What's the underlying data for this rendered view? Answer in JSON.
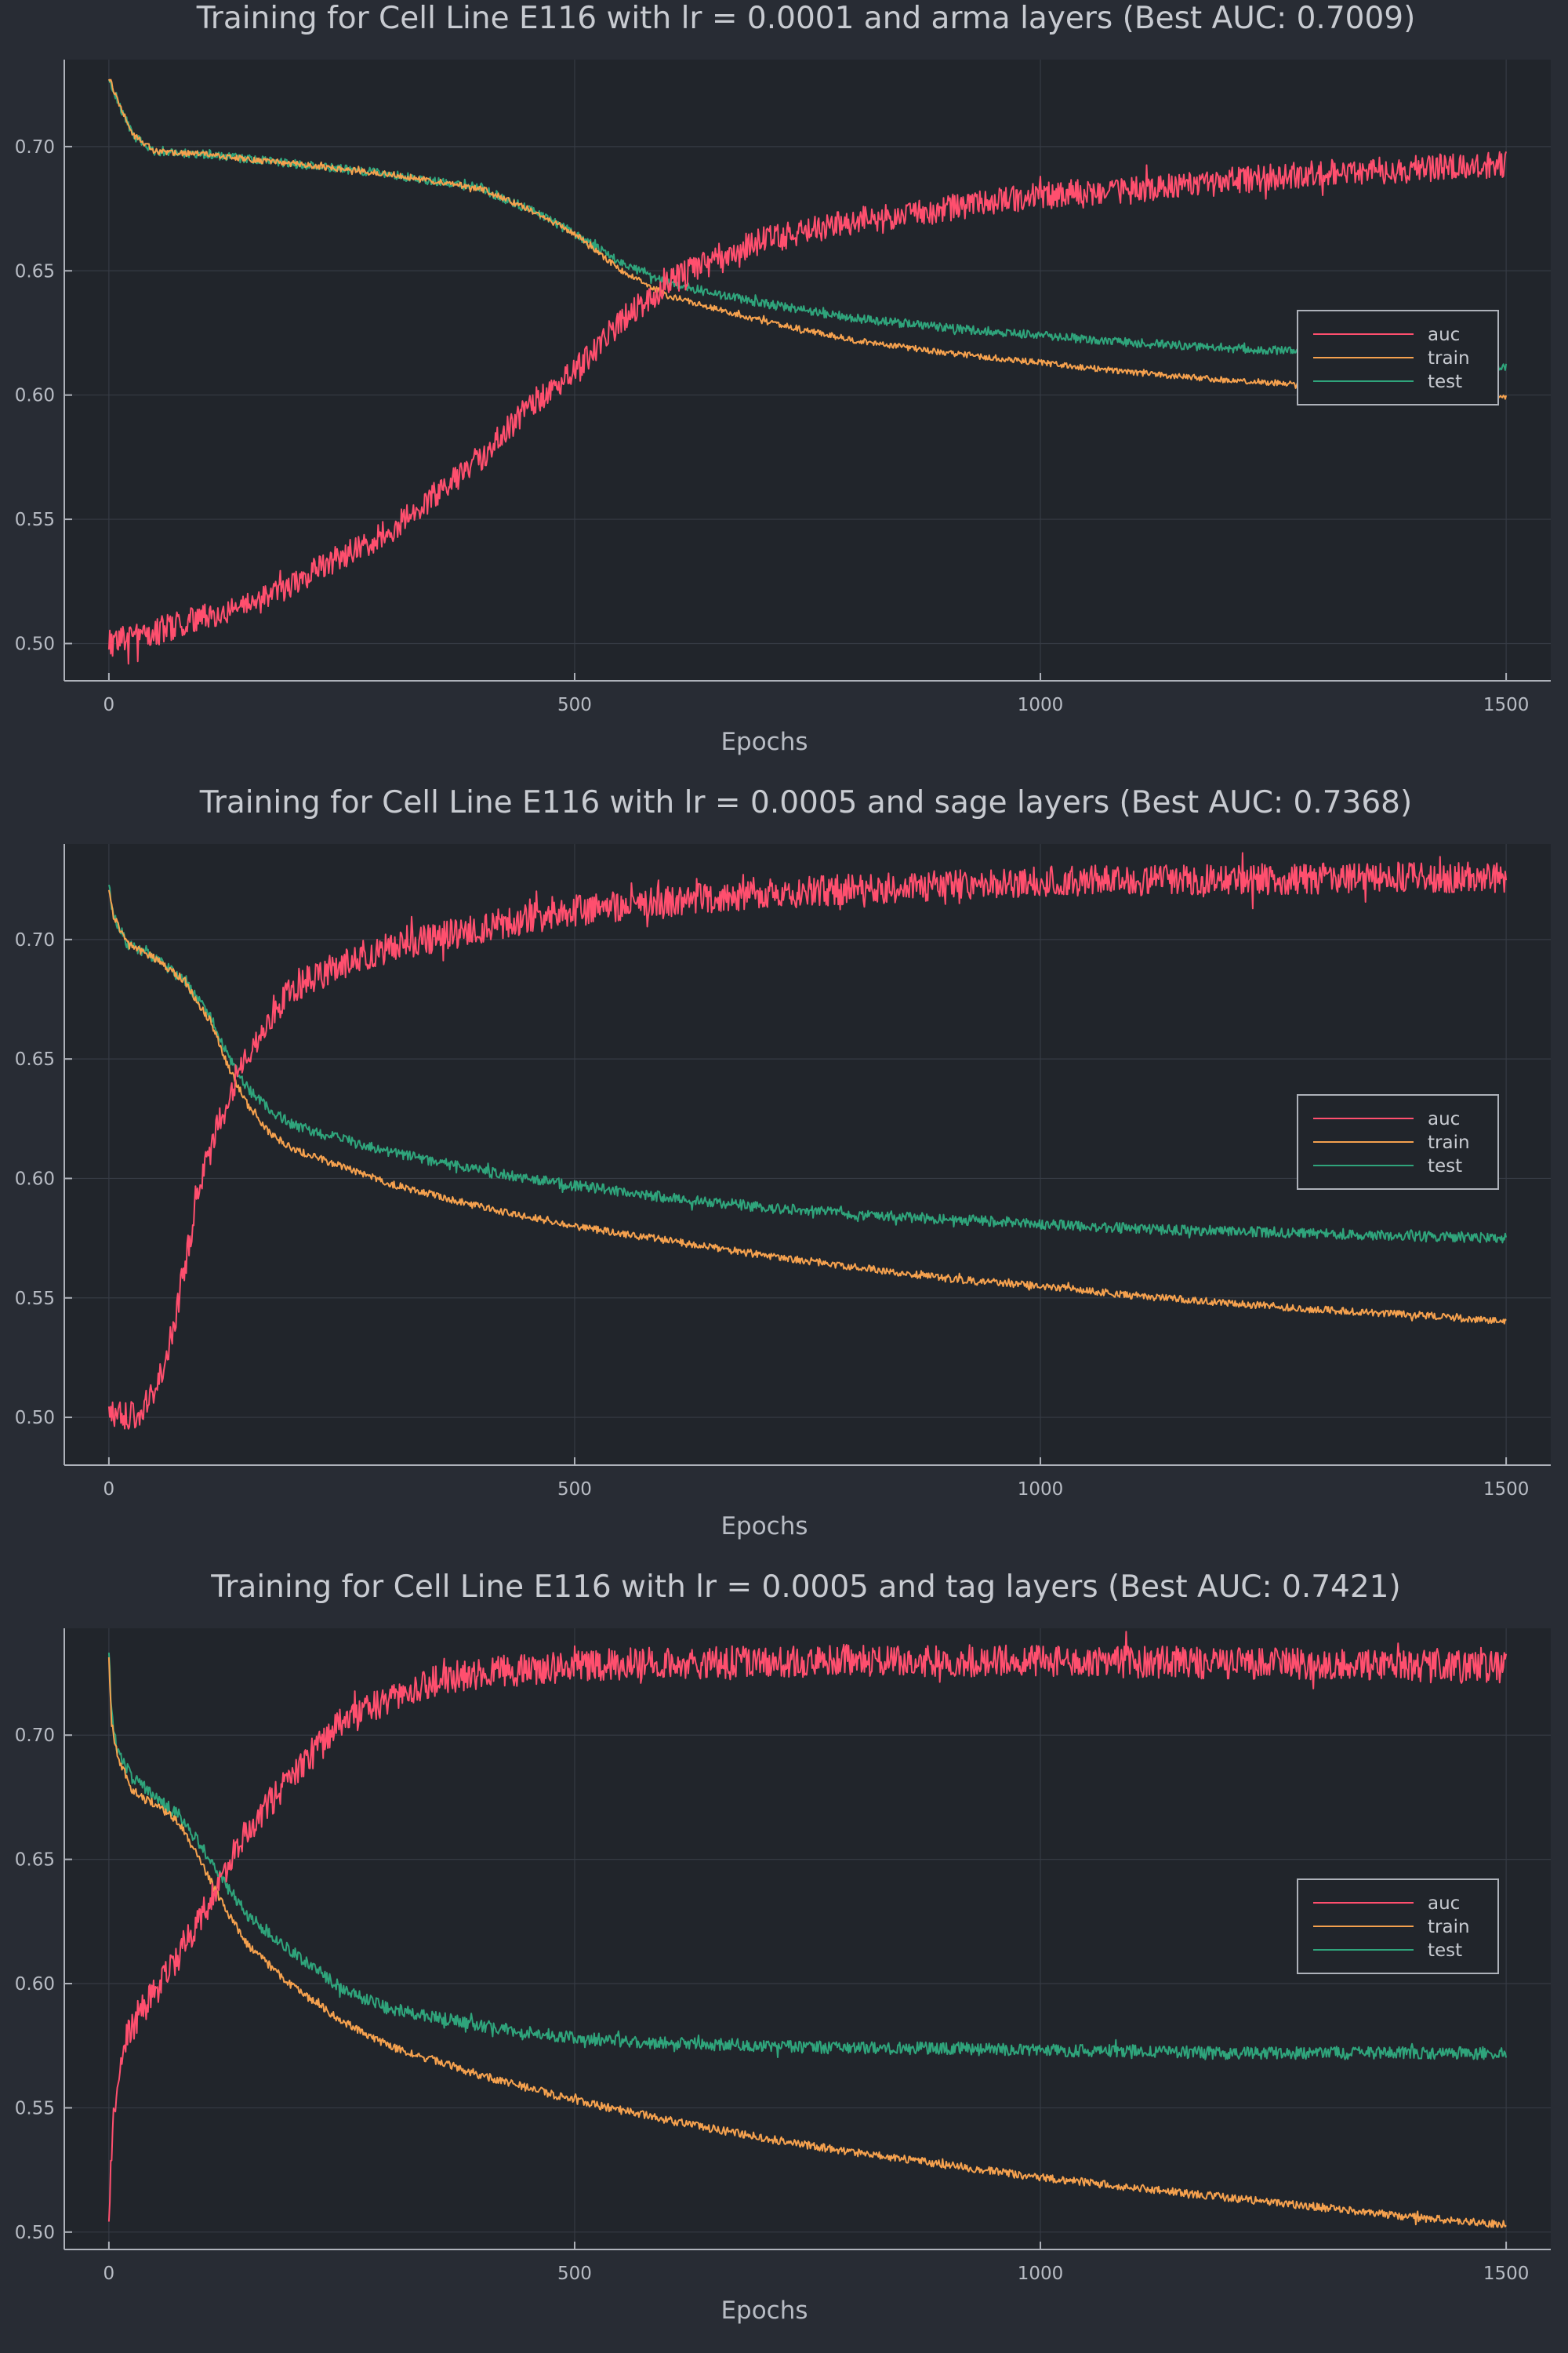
{
  "chart_data": [
    {
      "type": "line",
      "title": "Training for Cell Line E116 with lr = 0.0001 and arma layers (Best AUC: 0.7009)",
      "xlabel": "Epochs",
      "ylabel": "",
      "xlim": [
        0,
        1500
      ],
      "ylim": [
        0.485,
        0.735
      ],
      "xticks": [
        0,
        500,
        1000,
        1500
      ],
      "xtick_labels": [
        "0",
        "500",
        "1000",
        "1500"
      ],
      "yticks": [
        0.5,
        0.55,
        0.6,
        0.65,
        0.7
      ],
      "ytick_labels": [
        "0.50",
        "0.55",
        "0.60",
        "0.65",
        "0.70"
      ],
      "grid": true,
      "legend": "right",
      "series": [
        {
          "name": "auc",
          "color": "#ff4f6e",
          "x": [
            0,
            50,
            100,
            150,
            200,
            250,
            300,
            350,
            400,
            450,
            500,
            550,
            600,
            650,
            700,
            800,
            900,
            1000,
            1100,
            1200,
            1300,
            1400,
            1500
          ],
          "y": [
            0.5,
            0.505,
            0.51,
            0.515,
            0.525,
            0.535,
            0.545,
            0.56,
            0.575,
            0.595,
            0.61,
            0.63,
            0.645,
            0.655,
            0.662,
            0.67,
            0.675,
            0.68,
            0.683,
            0.686,
            0.689,
            0.691,
            0.693
          ]
        },
        {
          "name": "train",
          "color": "#f5a14e",
          "x": [
            0,
            10,
            25,
            50,
            100,
            200,
            300,
            400,
            450,
            500,
            550,
            600,
            700,
            800,
            900,
            1000,
            1100,
            1200,
            1300,
            1400,
            1500
          ],
          "y": [
            0.728,
            0.718,
            0.705,
            0.698,
            0.697,
            0.693,
            0.689,
            0.683,
            0.675,
            0.665,
            0.65,
            0.64,
            0.63,
            0.622,
            0.617,
            0.613,
            0.609,
            0.606,
            0.604,
            0.602,
            0.599
          ]
        },
        {
          "name": "test",
          "color": "#2fa47b",
          "x": [
            0,
            10,
            25,
            50,
            100,
            200,
            300,
            400,
            450,
            500,
            550,
            600,
            700,
            800,
            900,
            1000,
            1100,
            1200,
            1300,
            1400,
            1500
          ],
          "y": [
            0.728,
            0.718,
            0.705,
            0.698,
            0.697,
            0.693,
            0.689,
            0.683,
            0.675,
            0.665,
            0.653,
            0.645,
            0.637,
            0.631,
            0.627,
            0.624,
            0.621,
            0.619,
            0.617,
            0.615,
            0.611
          ]
        }
      ]
    },
    {
      "type": "line",
      "title": "Training for Cell Line E116 with lr = 0.0005 and sage layers (Best AUC: 0.7368)",
      "xlabel": "Epochs",
      "ylabel": "",
      "xlim": [
        0,
        1500
      ],
      "ylim": [
        0.48,
        0.74
      ],
      "xticks": [
        0,
        500,
        1000,
        1500
      ],
      "xtick_labels": [
        "0",
        "500",
        "1000",
        "1500"
      ],
      "yticks": [
        0.5,
        0.55,
        0.6,
        0.65,
        0.7
      ],
      "ytick_labels": [
        "0.50",
        "0.55",
        "0.60",
        "0.65",
        "0.70"
      ],
      "grid": true,
      "legend": "right",
      "series": [
        {
          "name": "auc",
          "color": "#ff4f6e",
          "x": [
            0,
            20,
            40,
            60,
            80,
            100,
            120,
            140,
            160,
            180,
            200,
            250,
            300,
            400,
            500,
            600,
            700,
            800,
            900,
            1000,
            1200,
            1400,
            1500
          ],
          "y": [
            0.5,
            0.5,
            0.505,
            0.52,
            0.56,
            0.6,
            0.625,
            0.645,
            0.66,
            0.672,
            0.68,
            0.69,
            0.697,
            0.705,
            0.712,
            0.716,
            0.719,
            0.721,
            0.723,
            0.724,
            0.725,
            0.726,
            0.726
          ]
        },
        {
          "name": "train",
          "color": "#f5a14e",
          "x": [
            0,
            5,
            20,
            50,
            80,
            110,
            130,
            150,
            175,
            200,
            300,
            400,
            500,
            600,
            700,
            800,
            900,
            1000,
            1100,
            1200,
            1300,
            1400,
            1500
          ],
          "y": [
            0.722,
            0.71,
            0.698,
            0.692,
            0.683,
            0.665,
            0.645,
            0.63,
            0.618,
            0.612,
            0.598,
            0.588,
            0.58,
            0.574,
            0.568,
            0.563,
            0.558,
            0.555,
            0.551,
            0.548,
            0.545,
            0.543,
            0.54
          ]
        },
        {
          "name": "test",
          "color": "#2fa47b",
          "x": [
            0,
            5,
            20,
            50,
            80,
            110,
            130,
            150,
            175,
            200,
            300,
            400,
            500,
            600,
            700,
            800,
            900,
            1000,
            1100,
            1200,
            1300,
            1400,
            1500
          ],
          "y": [
            0.722,
            0.71,
            0.698,
            0.692,
            0.683,
            0.667,
            0.65,
            0.637,
            0.628,
            0.622,
            0.611,
            0.603,
            0.597,
            0.592,
            0.588,
            0.585,
            0.583,
            0.581,
            0.579,
            0.578,
            0.577,
            0.576,
            0.575
          ]
        }
      ]
    },
    {
      "type": "line",
      "title": "Training for Cell Line E116 with lr = 0.0005 and tag layers (Best AUC: 0.7421)",
      "xlabel": "Epochs",
      "ylabel": "",
      "xlim": [
        0,
        1500
      ],
      "ylim": [
        0.493,
        0.743
      ],
      "xticks": [
        0,
        500,
        1000,
        1500
      ],
      "xtick_labels": [
        "0",
        "500",
        "1000",
        "1500"
      ],
      "yticks": [
        0.5,
        0.55,
        0.6,
        0.65,
        0.7
      ],
      "ytick_labels": [
        "0.50",
        "0.55",
        "0.60",
        "0.65",
        "0.70"
      ],
      "grid": true,
      "legend": "right",
      "series": [
        {
          "name": "auc",
          "color": "#ff4f6e",
          "x": [
            0,
            2,
            5,
            10,
            20,
            40,
            60,
            80,
            100,
            125,
            150,
            200,
            250,
            300,
            350,
            400,
            500,
            600,
            800,
            1000,
            1200,
            1500
          ],
          "y": [
            0.5,
            0.525,
            0.545,
            0.565,
            0.58,
            0.592,
            0.602,
            0.615,
            0.628,
            0.645,
            0.663,
            0.685,
            0.705,
            0.715,
            0.722,
            0.725,
            0.728,
            0.729,
            0.73,
            0.73,
            0.729,
            0.727
          ]
        },
        {
          "name": "train",
          "color": "#f5a14e",
          "x": [
            0,
            3,
            10,
            25,
            50,
            75,
            100,
            125,
            150,
            200,
            250,
            300,
            400,
            500,
            600,
            700,
            800,
            900,
            1000,
            1100,
            1200,
            1300,
            1400,
            1500
          ],
          "y": [
            0.73,
            0.705,
            0.69,
            0.678,
            0.672,
            0.665,
            0.648,
            0.63,
            0.615,
            0.598,
            0.585,
            0.575,
            0.563,
            0.553,
            0.545,
            0.538,
            0.532,
            0.527,
            0.522,
            0.518,
            0.514,
            0.51,
            0.506,
            0.503
          ]
        },
        {
          "name": "test",
          "color": "#2fa47b",
          "x": [
            0,
            3,
            10,
            25,
            50,
            75,
            100,
            125,
            150,
            200,
            250,
            300,
            400,
            500,
            600,
            700,
            800,
            900,
            1000,
            1100,
            1200,
            1300,
            1400,
            1500
          ],
          "y": [
            0.733,
            0.708,
            0.692,
            0.683,
            0.675,
            0.668,
            0.655,
            0.64,
            0.627,
            0.612,
            0.598,
            0.59,
            0.583,
            0.578,
            0.576,
            0.575,
            0.574,
            0.574,
            0.573,
            0.573,
            0.572,
            0.572,
            0.572,
            0.572
          ]
        }
      ]
    }
  ]
}
